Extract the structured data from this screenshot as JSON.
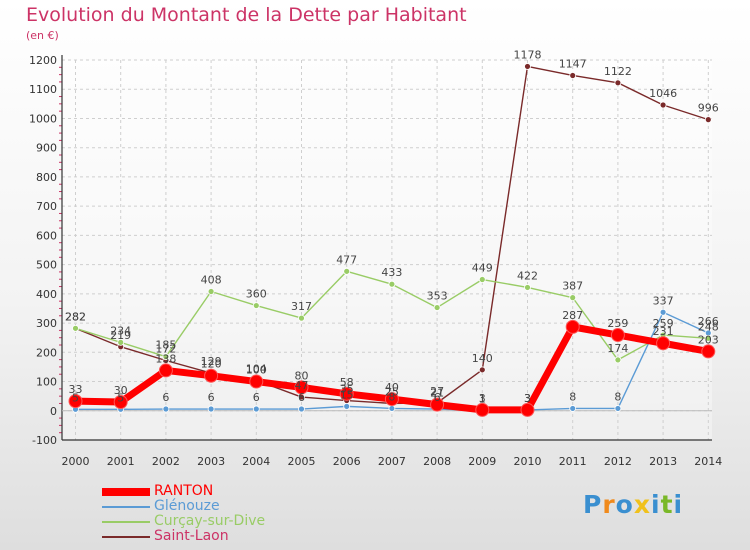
{
  "title": "Evolution du Montant de la Dette par Habitant",
  "unit": "(en €)",
  "logo": {
    "text": "Proxiti",
    "letter_colors": [
      "#3a8fd0",
      "#f08a1c",
      "#3a8fd0",
      "#f0c11c",
      "#3a8fd0",
      "#7ab828",
      "#3a8fd0"
    ]
  },
  "chart_data": {
    "type": "line",
    "x": [
      "2000",
      "2001",
      "2002",
      "2003",
      "2004",
      "2005",
      "2006",
      "2007",
      "2008",
      "2009",
      "2010",
      "2011",
      "2012",
      "2013",
      "2014"
    ],
    "ylim": [
      -100,
      1200
    ],
    "yticks": [
      "-100",
      "0",
      "100",
      "200",
      "300",
      "400",
      "500",
      "600",
      "700",
      "800",
      "900",
      "1000",
      "1100",
      "1200"
    ],
    "grid": true,
    "legend_position": "bottom-left",
    "series": [
      {
        "name": "RANTON",
        "color": "#ff0000",
        "values": [
          33,
          30,
          138,
          120,
          100,
          80,
          58,
          40,
          21,
          3,
          3,
          287,
          259,
          231,
          203
        ],
        "labels": [
          "33",
          "30",
          "138",
          "120",
          "100",
          "80",
          "58",
          "40",
          "21",
          "3",
          "3",
          "287",
          "259",
          "231",
          "203"
        ]
      },
      {
        "name": "Glénouze",
        "color": "#5b9bd5",
        "values": [
          5,
          5,
          6,
          6,
          6,
          6,
          15,
          8,
          6,
          1,
          3,
          8,
          8,
          337,
          266
        ],
        "labels": [
          "5",
          "5",
          "6",
          "6",
          "6",
          "6",
          "15",
          "8",
          "6",
          "1",
          "3",
          "8",
          "8",
          "337",
          "266"
        ]
      },
      {
        "name": "Curçay-sur-Dive",
        "color": "#99cc66",
        "values": [
          282,
          234,
          185,
          408,
          360,
          317,
          477,
          433,
          353,
          449,
          422,
          387,
          174,
          259,
          248
        ],
        "labels": [
          "282",
          "234",
          "185",
          "408",
          "360",
          "317",
          "477",
          "433",
          "353",
          "449",
          "422",
          "387",
          "174",
          "259",
          "248"
        ]
      },
      {
        "name": "Saint-Laon",
        "color": "#7a2a2a",
        "values": [
          282,
          219,
          172,
          129,
          104,
          47,
          35,
          25,
          27,
          140,
          1178,
          1147,
          1122,
          1046,
          996
        ],
        "labels": [
          "282",
          "219",
          "172",
          "129",
          "104",
          "47",
          "35",
          "25",
          "27",
          "140",
          "1178",
          "1147",
          "1122",
          "1046",
          "996"
        ]
      }
    ]
  }
}
